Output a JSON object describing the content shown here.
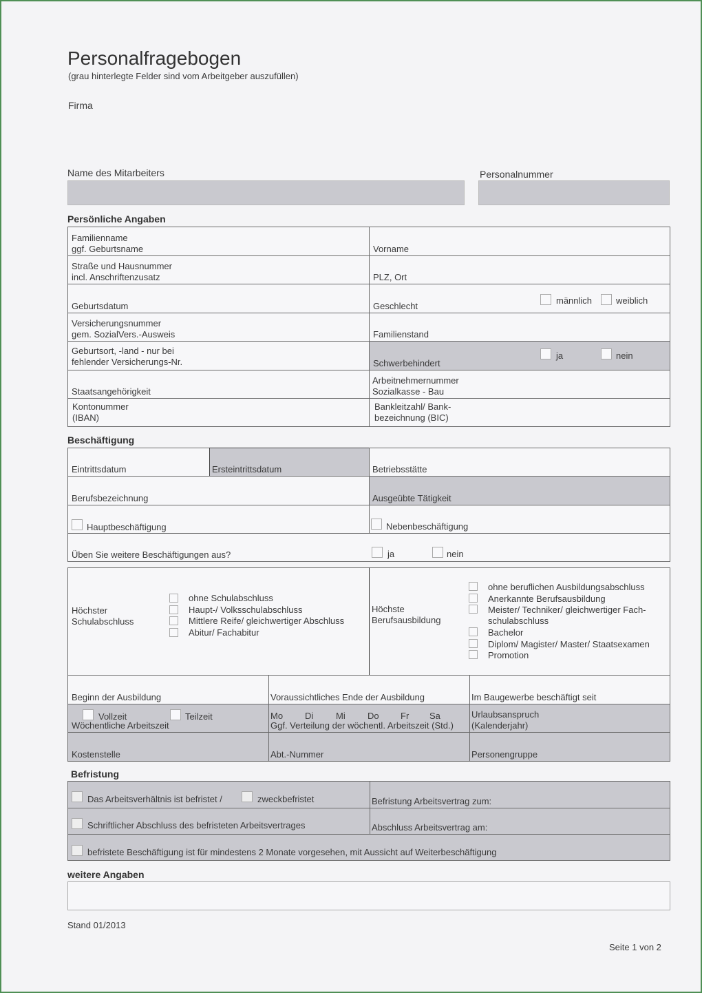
{
  "title": "Personalfragebogen",
  "subtitle": "(grau hinterlegte Felder sind vom Arbeitgeber auszufüllen)",
  "firma": "Firma",
  "name_label": "Name des Mitarbeiters",
  "personalnummer_label": "Personalnummer",
  "sections": {
    "personal": "Persönliche Angaben",
    "employment": "Beschäftigung",
    "term": "Befristung",
    "more": "weitere Angaben"
  },
  "personal": {
    "familienname": "Familienname\nggf. Geburtsname",
    "vorname": "Vorname",
    "strasse": "Straße und Hausnummer\nincl. Anschriftenzusatz",
    "plz": "PLZ, Ort",
    "geburtsdatum": "Geburtsdatum",
    "geschlecht": "Geschlecht",
    "maennlich": "männlich",
    "weiblich": "weiblich",
    "versicherung": "Versicherungsnummer\ngem. SozialVers.-Ausweis",
    "familienstand": "Familienstand",
    "geburtsort": "Geburtsort, -land - nur bei\nfehlender Versicherungs-Nr.",
    "schwerbehindert": "Schwerbehindert",
    "ja": "ja",
    "nein": "nein",
    "staatsang": "Staatsangehörigkeit",
    "arbeitnehmernr": "Arbeitnehmernummer\nSozialkasse - Bau",
    "konto": "Kontonummer\n(IBAN)",
    "blz": "Bankleitzahl/ Bank-\nbezeichnung (BIC)"
  },
  "employment": {
    "eintritt": "Eintrittsdatum",
    "ersteintritt": "Ersteintrittsdatum",
    "betriebsstaette": "Betriebsstätte",
    "beruf": "Berufsbezeichnung",
    "taetigkeit": "Ausgeübte Tätigkeit",
    "haupt": "Hauptbeschäftigung",
    "neben": "Nebenbeschäftigung",
    "weitere": "Üben Sie weitere Beschäftigungen aus?",
    "ja": "ja",
    "nein": "nein",
    "schul_label": "Höchster\nSchulabschluss",
    "schul_options": [
      "ohne Schulabschluss",
      "Haupt-/ Volksschulabschluss",
      "Mittlere Reife/ gleichwertiger Abschluss",
      "Abitur/ Fachabitur"
    ],
    "beruf_label": "Höchste\nBerufsausbildung",
    "beruf_options": [
      "ohne beruflichen Ausbildungsabschluss",
      "Anerkannte Berufsausbildung",
      "Meister/ Techniker/ gleichwertiger Fach-\nschulabschluss",
      "Bachelor",
      "Diplom/ Magister/ Master/ Staatsexamen",
      "Promotion"
    ],
    "beginn": "Beginn der Ausbildung",
    "ende": "Voraussichtliches Ende der Ausbildung",
    "baugewerbe": "Im Baugewerbe beschäftigt seit",
    "vollzeit": "Vollzeit",
    "teilzeit": "Teilzeit",
    "woechentlich": "Wöchentliche Arbeitszeit",
    "days": [
      "Mo",
      "Di",
      "Mi",
      "Do",
      "Fr",
      "Sa"
    ],
    "verteilung": "Ggf. Verteilung der wöchentl. Arbeitszeit (Std.)",
    "urlaub": "Urlaubsanspruch\n(Kalenderjahr)",
    "kostenstelle": "Kostenstelle",
    "abt": "Abt.-Nummer",
    "personengruppe": "Personengruppe"
  },
  "term": {
    "befristet": "Das Arbeitsverhältnis ist befristet /",
    "zweck": "zweckbefristet",
    "befristung_zum": "Befristung Arbeitsvertrag zum:",
    "schriftlich": "Schriftlicher Abschluss des befristeten Arbeitsvertrages",
    "abschluss_am": "Abschluss Arbeitsvertrag am:",
    "zwei_monate": "befristete Beschäftigung ist für mindestens 2 Monate vorgesehen, mit Aussicht auf Weiterbeschäftigung"
  },
  "stand": "Stand 01/2013",
  "page": {
    "prefix": "Seite ",
    "current": "1",
    "suffix": " von 2"
  }
}
